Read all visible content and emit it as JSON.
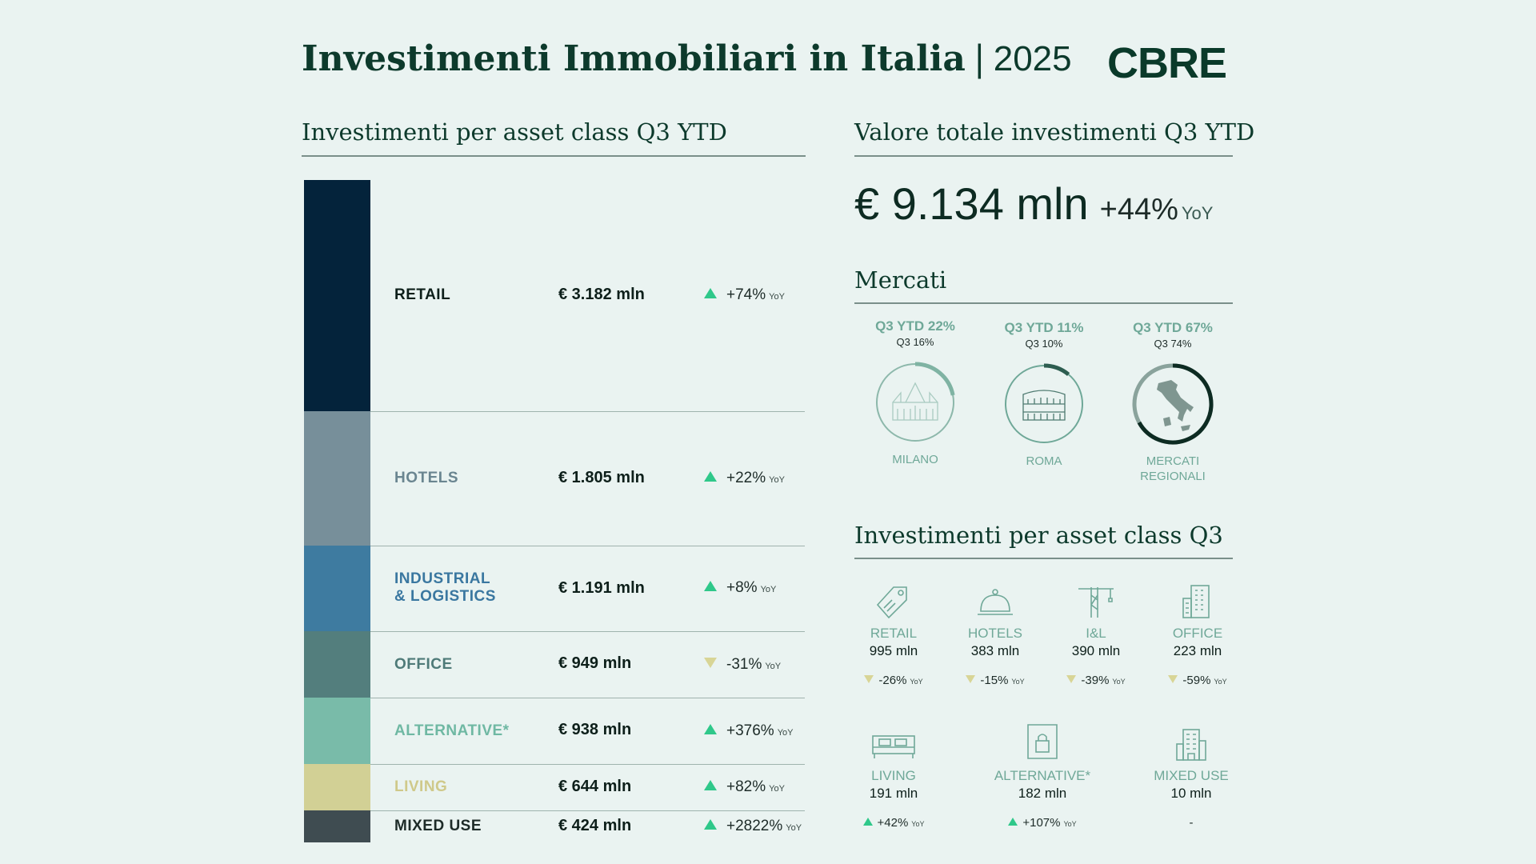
{
  "header": {
    "title": "Investimenti Immobiliari in Italia",
    "separator": "|",
    "year": "2025",
    "logo": "CBRE"
  },
  "left": {
    "section_title": "Investimenti per asset class Q3 YTD",
    "rows": [
      {
        "label": "RETAIL",
        "value": "€ 3.182 mln",
        "change": "+74%",
        "yoy": "YoY",
        "direction": "up",
        "bar_color": "#04233b",
        "label_color": "#0d1f1a"
      },
      {
        "label": "HOTELS",
        "value": "€ 1.805 mln",
        "change": "+22%",
        "yoy": "YoY",
        "direction": "up",
        "bar_color": "#778f9a",
        "label_color": "#6a8590"
      },
      {
        "label_line1": "INDUSTRIAL",
        "label_line2": "& LOGISTICS",
        "value": "€ 1.191 mln",
        "change": "+8%",
        "yoy": "YoY",
        "direction": "up",
        "bar_color": "#3e7ba0",
        "label_color": "#3a77a0"
      },
      {
        "label": "OFFICE",
        "value": "€ 949 mln",
        "change": "-31%",
        "yoy": "YoY",
        "direction": "down",
        "bar_color": "#537e7d",
        "label_color": "#4e7a78"
      },
      {
        "label": "ALTERNATIVE*",
        "value": "€ 938 mln",
        "change": "+376%",
        "yoy": "YoY",
        "direction": "up",
        "bar_color": "#79bba9",
        "label_color": "#6fb8a3"
      },
      {
        "label": "LIVING",
        "value": "€ 644 mln",
        "change": "+82%",
        "yoy": "YoY",
        "direction": "up",
        "bar_color": "#d2d095",
        "label_color": "#cfc98a"
      },
      {
        "label": "MIXED USE",
        "value": "€ 424 mln",
        "change": "+2822%",
        "yoy": "YoY",
        "direction": "up",
        "bar_color": "#3f4c51",
        "label_color": "#1d2b28"
      }
    ]
  },
  "right": {
    "total_title": "Valore totale investimenti Q3 YTD",
    "total_value": "€ 9.134 mln",
    "total_change": "+44%",
    "total_yoy": "YoY",
    "markets_title": "Mercati",
    "markets": [
      {
        "ytd": "Q3 YTD 22%",
        "q3": "Q3 16%",
        "name": "MILANO",
        "ytd_share": 0.22,
        "q3_share": 0.16
      },
      {
        "ytd": "Q3 YTD 11%",
        "q3": "Q3 10%",
        "name": "ROMA",
        "ytd_share": 0.11,
        "q3_share": 0.1
      },
      {
        "ytd": "Q3 YTD 67%",
        "q3": "Q3 74%",
        "name_line1": "MERCATI",
        "name_line2": "REGIONALI",
        "ytd_share": 0.67,
        "q3_share": 0.74
      }
    ],
    "q3_title": "Investimenti per asset class Q3",
    "q3_assets": [
      {
        "label": "RETAIL",
        "value": "995 mln",
        "change": "-26%",
        "yoy": "YoY",
        "direction": "down",
        "icon": "tag-icon"
      },
      {
        "label": "HOTELS",
        "value": "383 mln",
        "change": "-15%",
        "yoy": "YoY",
        "direction": "down",
        "icon": "cloche-icon"
      },
      {
        "label": "I&L",
        "value": "390 mln",
        "change": "-39%",
        "yoy": "YoY",
        "direction": "down",
        "icon": "crane-icon"
      },
      {
        "label": "OFFICE",
        "value": "223 mln",
        "change": "-59%",
        "yoy": "YoY",
        "direction": "down",
        "icon": "office-building-icon"
      },
      {
        "label": "LIVING",
        "value": "191 mln",
        "change": "+42%",
        "yoy": "YoY",
        "direction": "up",
        "icon": "bed-icon"
      },
      {
        "label": "ALTERNATIVE*",
        "value": "182 mln",
        "change": "+107%",
        "yoy": "YoY",
        "direction": "up",
        "icon": "lock-storage-icon"
      },
      {
        "label": "MIXED USE",
        "value": "10 mln",
        "change": "-",
        "yoy": "",
        "direction": "none",
        "icon": "mixed-building-icon"
      }
    ]
  }
}
